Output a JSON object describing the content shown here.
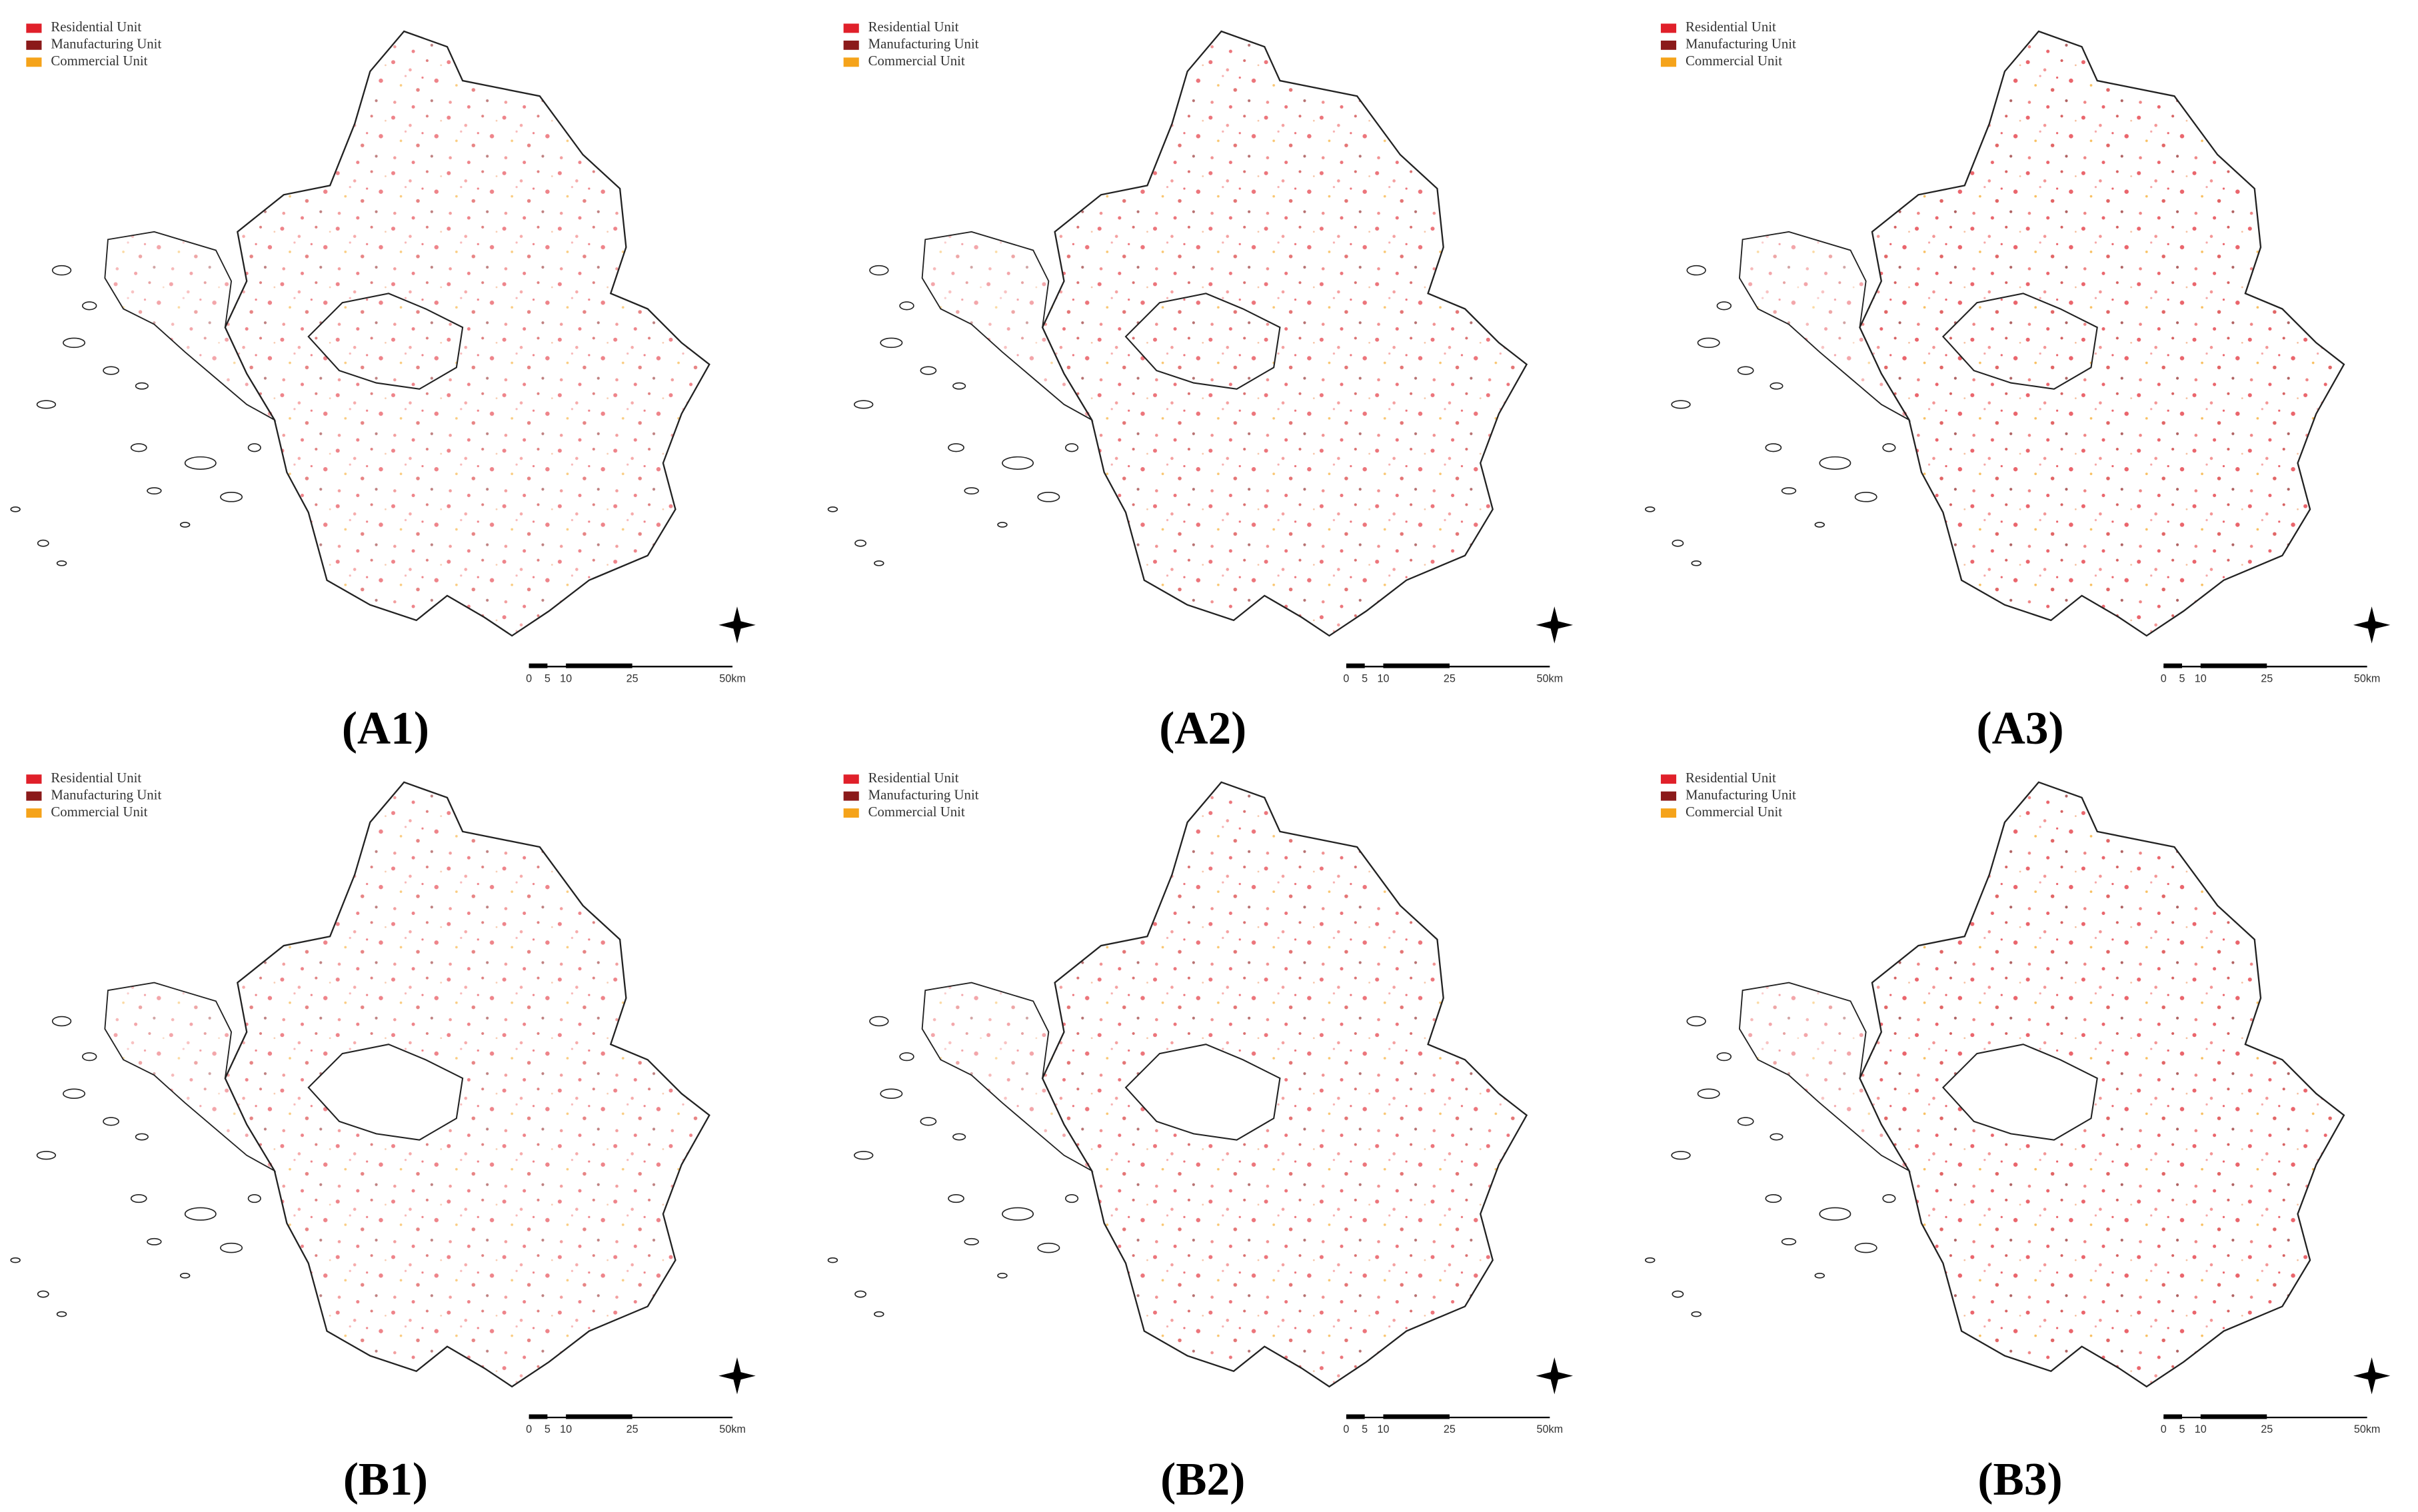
{
  "legend": [
    {
      "name": "Residential Unit",
      "color": "#e0202a"
    },
    {
      "name": "Manufacturing Unit",
      "color": "#8b1a1a"
    },
    {
      "name": "Commercial Unit",
      "color": "#f5a31a"
    }
  ],
  "scale_bar": [
    "0",
    "5",
    "10",
    "25",
    "50km"
  ],
  "panels": [
    {
      "label": "(A1)"
    },
    {
      "label": "(A2)"
    },
    {
      "label": "(A3)"
    },
    {
      "label": "(B1)"
    },
    {
      "label": "(B2)"
    },
    {
      "label": "(B3)"
    }
  ]
}
